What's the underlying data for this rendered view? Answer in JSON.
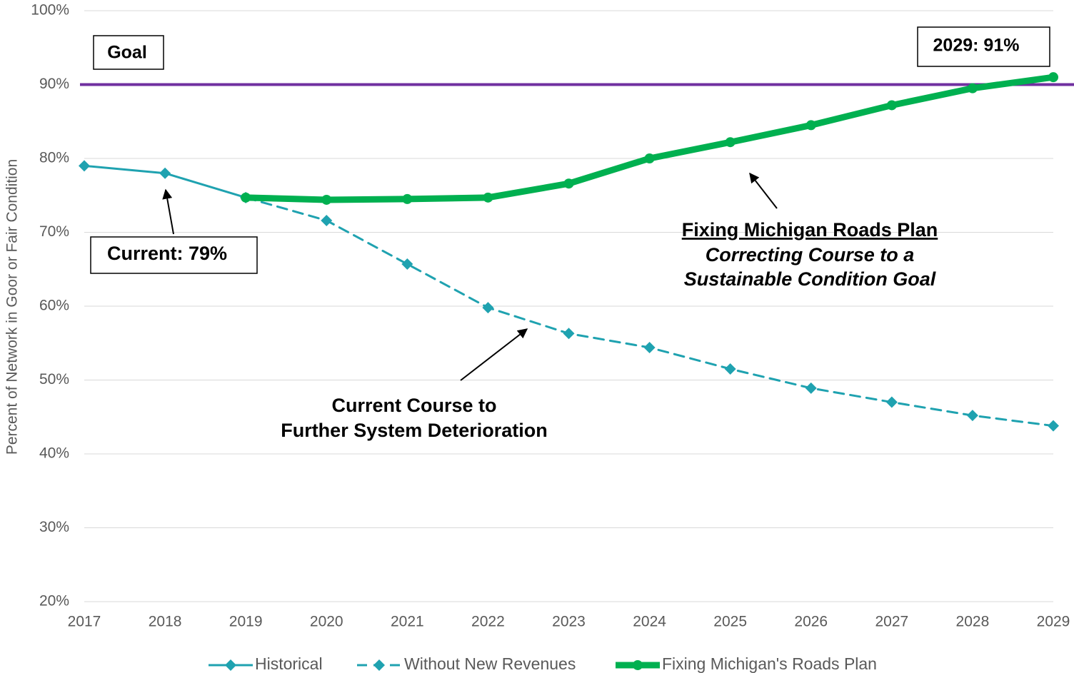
{
  "chart_data": {
    "type": "line",
    "y_label": "Percent of Network in Goor or Fair Condition",
    "x": [
      2017,
      2018,
      2019,
      2020,
      2021,
      2022,
      2023,
      2024,
      2025,
      2026,
      2027,
      2028,
      2029
    ],
    "xlim": [
      2017,
      2029
    ],
    "xticks": [
      2017,
      2018,
      2019,
      2020,
      2021,
      2022,
      2023,
      2024,
      2025,
      2026,
      2027,
      2028,
      2029
    ],
    "ylim": [
      20,
      100
    ],
    "yticks": [
      {
        "value": 20,
        "label": "20%"
      },
      {
        "value": 30,
        "label": "30%"
      },
      {
        "value": 40,
        "label": "40%"
      },
      {
        "value": 50,
        "label": "50%"
      },
      {
        "value": 60,
        "label": "60%"
      },
      {
        "value": 70,
        "label": "70%"
      },
      {
        "value": 80,
        "label": "80%"
      },
      {
        "value": 90,
        "label": "90%"
      },
      {
        "value": 100,
        "label": "100%"
      }
    ],
    "grid": true,
    "legend": "bottom",
    "series": [
      {
        "name": "Historical",
        "color": "#1fa2b0",
        "style": "solid",
        "marker": "diamond",
        "values": [
          79,
          78,
          74.7,
          null,
          null,
          null,
          null,
          null,
          null,
          null,
          null,
          null,
          null
        ]
      },
      {
        "name": "Without New Revenues",
        "color": "#1fa2b0",
        "style": "dashed",
        "marker": "diamond",
        "values": [
          null,
          null,
          74.7,
          71.6,
          65.7,
          59.8,
          56.3,
          54.4,
          51.5,
          48.9,
          47,
          45.2,
          43.8
        ]
      },
      {
        "name": "Fixing Michigan's Roads Plan",
        "color": "#00b050",
        "style": "thick",
        "marker": "circle",
        "values": [
          null,
          null,
          74.7,
          74.4,
          74.5,
          74.7,
          76.6,
          80,
          82.2,
          84.5,
          87.2,
          89.5,
          91
        ]
      }
    ],
    "goal": {
      "label": "Goal",
      "value": 90,
      "color": "#7030a0"
    },
    "annotations": [
      "Current: 79%",
      "2029: 91%",
      "Fixing Michigan Roads Plan",
      "Correcting Course to a",
      "Sustainable Condition Goal",
      "Current Course to",
      "Further System Deterioration"
    ]
  }
}
